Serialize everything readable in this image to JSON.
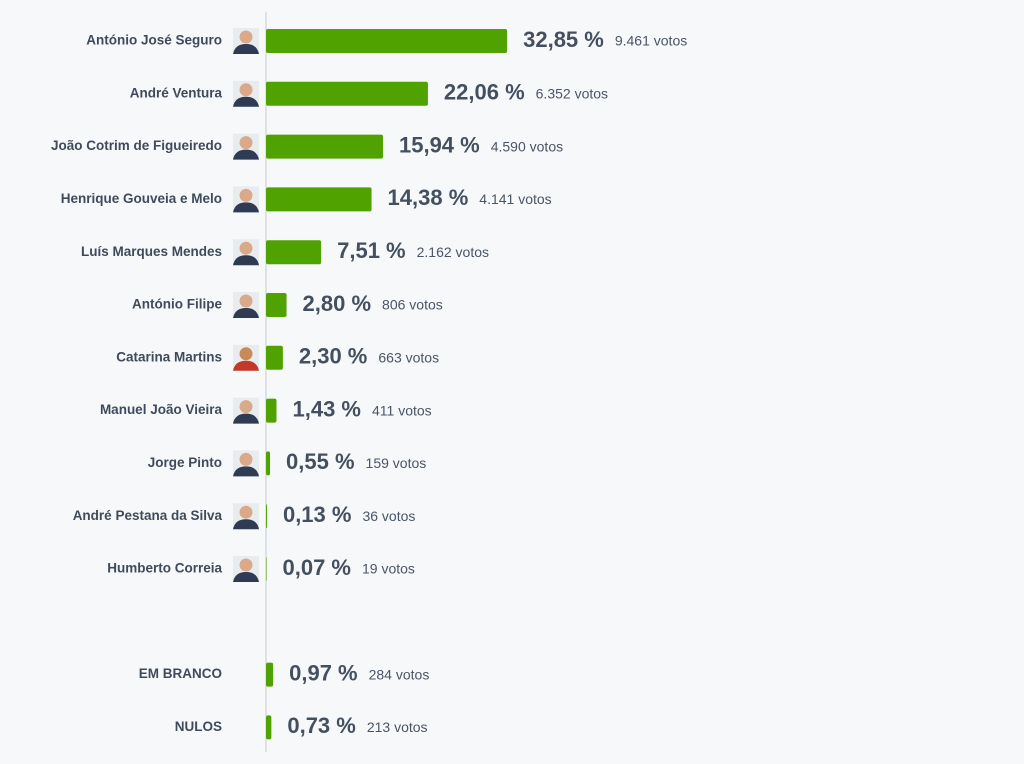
{
  "chart_data": {
    "type": "bar",
    "orientation": "horizontal",
    "categories": [
      "António José Seguro",
      "André Ventura",
      "João Cotrim de Figueiredo",
      "Henrique Gouveia e Melo",
      "Luís Marques Mendes",
      "António Filipe",
      "Catarina Martins",
      "Manuel João Vieira",
      "Jorge Pinto",
      "André Pestana da Silva",
      "Humberto Correia",
      null,
      "EM BRANCO",
      "NULOS"
    ],
    "values": [
      32.85,
      22.06,
      15.94,
      14.38,
      7.51,
      2.8,
      2.3,
      1.43,
      0.55,
      0.13,
      0.07,
      null,
      0.97,
      0.73
    ],
    "value_labels": [
      "32,85 %",
      "22,06 %",
      "15,94 %",
      "14,38 %",
      "7,51 %",
      "2,80 %",
      "2,30 %",
      "1,43 %",
      "0,55 %",
      "0,13 %",
      "0,07 %",
      null,
      "0,97 %",
      "0,73 %"
    ],
    "vote_labels": [
      "9.461 votos",
      "6.352 votos",
      "4.590 votos",
      "4.141 votos",
      "2.162 votos",
      "806 votos",
      "663 votos",
      "411 votos",
      "159 votos",
      "36 votos",
      "19 votos",
      null,
      "284 votos",
      "213 votos"
    ],
    "color": "#4fa200",
    "xlim": [
      0,
      100
    ]
  }
}
